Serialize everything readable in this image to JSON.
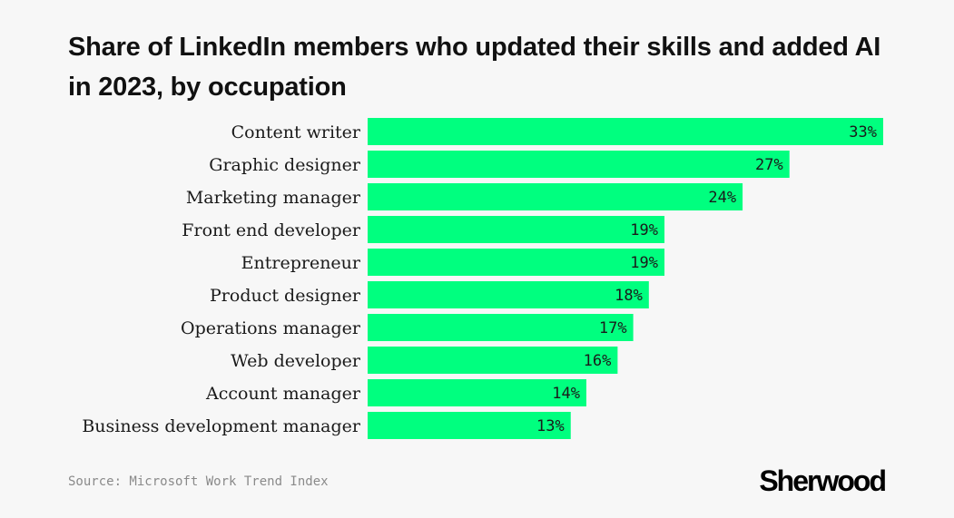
{
  "chart_data": {
    "type": "bar",
    "orientation": "horizontal",
    "title": "Share of LinkedIn members who updated their skills and added AI in 2023, by occupation",
    "categories": [
      "Content writer",
      "Graphic designer",
      "Marketing manager",
      "Front end developer",
      "Entrepreneur",
      "Product designer",
      "Operations manager",
      "Web developer",
      "Account manager",
      "Business development manager"
    ],
    "values": [
      33,
      27,
      24,
      19,
      19,
      18,
      17,
      16,
      14,
      13
    ],
    "value_labels": [
      "33%",
      "27%",
      "24%",
      "19%",
      "19%",
      "18%",
      "17%",
      "16%",
      "14%",
      "13%"
    ],
    "xlim": [
      0,
      33
    ],
    "grid": false,
    "legend": "none",
    "bar_color": "#00ff7f"
  },
  "source": "Source: Microsoft Work Trend Index",
  "brand": "Sherwood",
  "colors": {
    "background": "#f7f7f7",
    "bar": "#00ff7f",
    "text": "#1a1a1a",
    "source_text": "#8a8a8a"
  }
}
